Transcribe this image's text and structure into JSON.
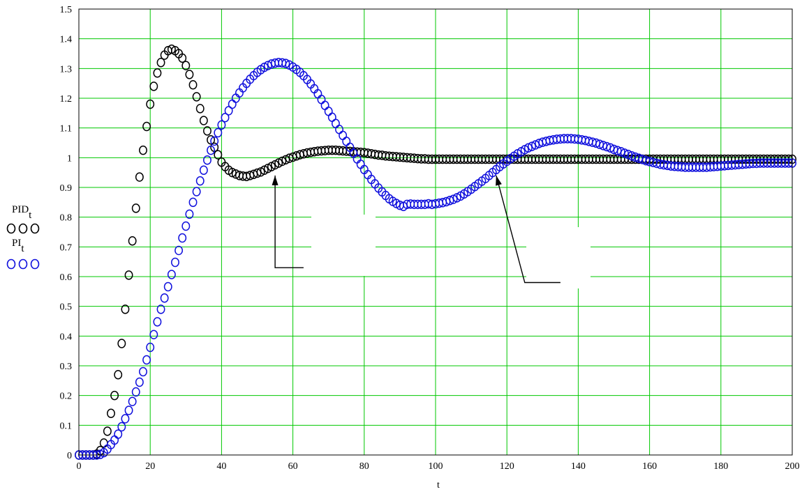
{
  "chart_data": {
    "type": "scatter",
    "xlabel": "t",
    "xlim": [
      0,
      200
    ],
    "ylim": [
      0,
      1.5
    ],
    "x_ticks": [
      0,
      20,
      40,
      60,
      80,
      100,
      120,
      140,
      160,
      180,
      200
    ],
    "y_ticks": [
      0,
      0.1,
      0.2,
      0.3,
      0.4,
      0.5,
      0.6,
      0.7,
      0.8,
      0.9,
      1,
      1.1,
      1.2,
      1.3,
      1.4,
      1.5
    ],
    "grid": true,
    "grid_color": "#00c800",
    "legend_placement": "left",
    "x_step": 1,
    "series": [
      {
        "name": "PID",
        "subscript": "t",
        "color": "#000000",
        "marker": "open-circle",
        "values": [
          0,
          0,
          0,
          0,
          0,
          0.003,
          0.015,
          0.04,
          0.08,
          0.14,
          0.2,
          0.27,
          0.375,
          0.49,
          0.605,
          0.72,
          0.83,
          0.935,
          1.025,
          1.105,
          1.18,
          1.24,
          1.285,
          1.32,
          1.345,
          1.36,
          1.365,
          1.36,
          1.35,
          1.335,
          1.31,
          1.28,
          1.245,
          1.205,
          1.165,
          1.125,
          1.09,
          1.06,
          1.035,
          1.01,
          0.985,
          0.97,
          0.958,
          0.95,
          0.945,
          0.94,
          0.938,
          0.937,
          0.94,
          0.944,
          0.948,
          0.952,
          0.958,
          0.964,
          0.97,
          0.976,
          0.982,
          0.988,
          0.993,
          0.998,
          1.002,
          1.006,
          1.01,
          1.013,
          1.016,
          1.018,
          1.02,
          1.022,
          1.023,
          1.024,
          1.025,
          1.025,
          1.025,
          1.024,
          1.023,
          1.022,
          1.021,
          1.02,
          1.019,
          1.018,
          1.017,
          1.015,
          1.013,
          1.011,
          1.009,
          1.008,
          1.006,
          1.005,
          1.004,
          1.003,
          1.002,
          1.001,
          1,
          0.999,
          0.998,
          0.997,
          0.996,
          0.996,
          0.995,
          0.995,
          0.995,
          0.995,
          0.995,
          0.995,
          0.995,
          0.995,
          0.995,
          0.995,
          0.995,
          0.995,
          0.995,
          0.995,
          0.995,
          0.995,
          0.995,
          0.995,
          0.995,
          0.995,
          0.995,
          0.995,
          0.995,
          0.995,
          0.995,
          0.995,
          0.995,
          0.995,
          0.995,
          0.995,
          0.995,
          0.995,
          0.995,
          0.995,
          0.995,
          0.995,
          0.995,
          0.995,
          0.995,
          0.995,
          0.995,
          0.995,
          0.995,
          0.995,
          0.995,
          0.995,
          0.995,
          0.995,
          0.995,
          0.995,
          0.995,
          0.995,
          0.995,
          0.995,
          0.995,
          0.995,
          0.995,
          0.995,
          0.995,
          0.995,
          0.995,
          0.995,
          0.995,
          0.995,
          0.995,
          0.995,
          0.995,
          0.995,
          0.995,
          0.995,
          0.995,
          0.995,
          0.995,
          0.995,
          0.995,
          0.995,
          0.995,
          0.995,
          0.995,
          0.995,
          0.995,
          0.995,
          0.995,
          0.995,
          0.995,
          0.995,
          0.995,
          0.995,
          0.995,
          0.995,
          0.995,
          0.995,
          0.995,
          0.995,
          0.995,
          0.995,
          0.995,
          0.995,
          0.995,
          0.995,
          0.995,
          0.995,
          0.995
        ]
      },
      {
        "name": "PI",
        "subscript": "t",
        "color": "#1010dd",
        "marker": "open-circle",
        "values": [
          0,
          0,
          0,
          0,
          0,
          0,
          0.002,
          0.008,
          0.02,
          0.035,
          0.05,
          0.07,
          0.095,
          0.122,
          0.15,
          0.18,
          0.212,
          0.245,
          0.28,
          0.32,
          0.362,
          0.405,
          0.448,
          0.49,
          0.528,
          0.566,
          0.607,
          0.648,
          0.688,
          0.73,
          0.77,
          0.81,
          0.85,
          0.886,
          0.922,
          0.958,
          0.992,
          1.025,
          1.056,
          1.084,
          1.11,
          1.135,
          1.158,
          1.18,
          1.2,
          1.218,
          1.235,
          1.25,
          1.264,
          1.276,
          1.287,
          1.296,
          1.304,
          1.31,
          1.315,
          1.318,
          1.32,
          1.319,
          1.317,
          1.312,
          1.305,
          1.297,
          1.287,
          1.276,
          1.263,
          1.248,
          1.232,
          1.215,
          1.196,
          1.176,
          1.156,
          1.136,
          1.115,
          1.095,
          1.075,
          1.055,
          1.035,
          1.015,
          0.996,
          0.978,
          0.96,
          0.943,
          0.927,
          0.912,
          0.898,
          0.885,
          0.873,
          0.862,
          0.853,
          0.846,
          0.84,
          0.836,
          0.843,
          0.844,
          0.843,
          0.843,
          0.843,
          0.843,
          0.845,
          0.843,
          0.845,
          0.847,
          0.849,
          0.852,
          0.856,
          0.86,
          0.865,
          0.871,
          0.878,
          0.886,
          0.894,
          0.903,
          0.912,
          0.921,
          0.93,
          0.94,
          0.95,
          0.96,
          0.97,
          0.979,
          0.988,
          0.997,
          1.005,
          1.013,
          1.02,
          1.027,
          1.033,
          1.038,
          1.043,
          1.048,
          1.052,
          1.055,
          1.058,
          1.06,
          1.062,
          1.063,
          1.064,
          1.064,
          1.064,
          1.063,
          1.062,
          1.06,
          1.058,
          1.055,
          1.052,
          1.049,
          1.045,
          1.041,
          1.037,
          1.033,
          1.028,
          1.024,
          1.02,
          1.015,
          1.011,
          1.006,
          1.002,
          0.998,
          0.994,
          0.99,
          0.987,
          0.984,
          0.981,
          0.978,
          0.976,
          0.974,
          0.972,
          0.971,
          0.97,
          0.969,
          0.968,
          0.968,
          0.968,
          0.968,
          0.968,
          0.968,
          0.968,
          0.969,
          0.97,
          0.971,
          0.972,
          0.973,
          0.974,
          0.975,
          0.976,
          0.977,
          0.978,
          0.979,
          0.98,
          0.981,
          0.981,
          0.982,
          0.982,
          0.982,
          0.982,
          0.982,
          0.982,
          0.982,
          0.982,
          0.982,
          0.982
        ]
      }
    ],
    "annotations": [
      {
        "type": "arrow",
        "points": [
          [
            63,
            0.63
          ],
          [
            55,
            0.63
          ],
          [
            55,
            0.94
          ]
        ],
        "label": ""
      },
      {
        "type": "arrow",
        "points": [
          [
            135,
            0.58
          ],
          [
            125,
            0.58
          ],
          [
            117,
            0.94
          ]
        ],
        "label": ""
      }
    ]
  }
}
